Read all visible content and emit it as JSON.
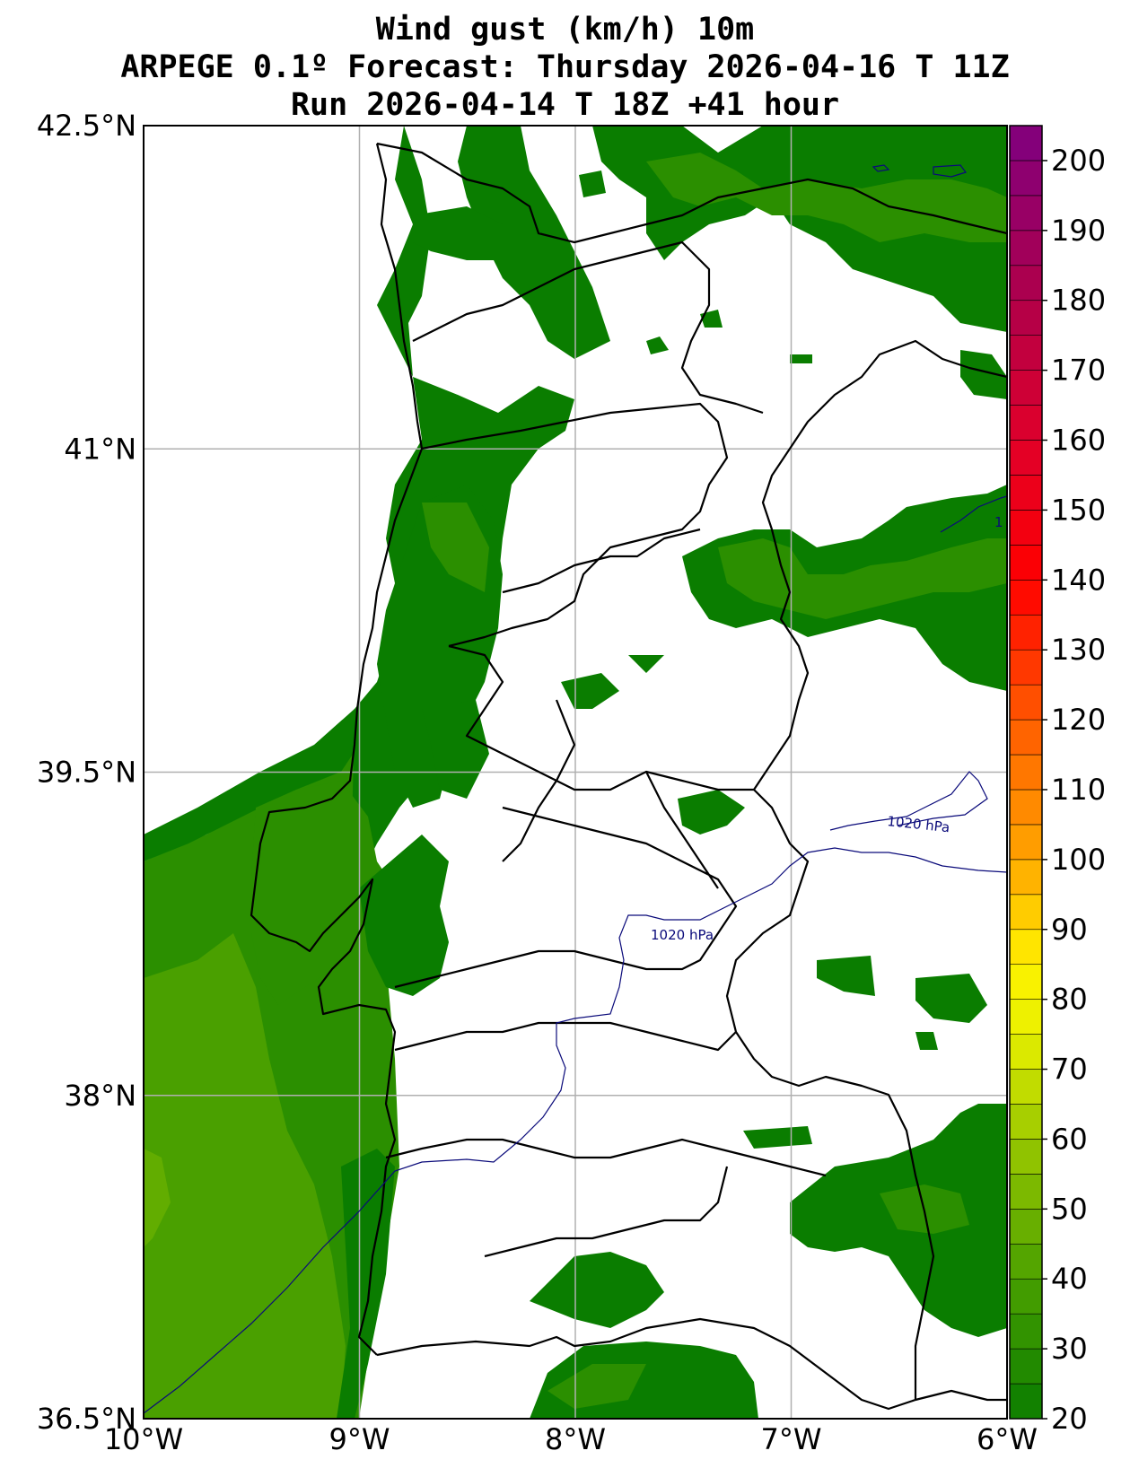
{
  "title": {
    "line1": "Wind gust (km/h) 10m",
    "line2": "ARPEGE 0.1º Forecast: Thursday 2026-04-16 T 11Z",
    "line3": "Run 2026-04-14 T 18Z +41 hour"
  },
  "map": {
    "lon_range": [
      -10,
      -6
    ],
    "lat_range": [
      36.5,
      42.5
    ],
    "lon_ticks": [
      {
        "value": -10,
        "label": "10°W"
      },
      {
        "value": -9,
        "label": "9°W"
      },
      {
        "value": -8,
        "label": "8°W"
      },
      {
        "value": -7,
        "label": "7°W"
      },
      {
        "value": -6,
        "label": "6°W"
      }
    ],
    "lat_ticks": [
      {
        "value": 42.5,
        "label": "42.5°N"
      },
      {
        "value": 41,
        "label": "41°N"
      },
      {
        "value": 39.5,
        "label": "39.5°N"
      },
      {
        "value": 38,
        "label": "38°N"
      },
      {
        "value": 36.5,
        "label": "36.5°N"
      }
    ],
    "grid": true,
    "isobar_labels": [
      "1020 hPa",
      "1020 hPa",
      "1"
    ],
    "colors": {
      "green_dark": "#0a7d00",
      "green_mid": "#2b8f00",
      "green_light": "#4aa000",
      "green_lighter": "#62ad00",
      "isobar": "#0a0a7a",
      "border": "#000000"
    }
  },
  "colorbar": {
    "min": 20,
    "max": 205,
    "step": 5,
    "labels": [
      "200",
      "190",
      "180",
      "170",
      "160",
      "150",
      "140",
      "130",
      "120",
      "110",
      "100",
      "90",
      "80",
      "70",
      "60",
      "50",
      "40",
      "30",
      "20"
    ],
    "label_values": [
      200,
      190,
      180,
      170,
      160,
      150,
      140,
      130,
      120,
      110,
      100,
      90,
      80,
      70,
      60,
      50,
      40,
      30,
      20
    ],
    "stops": [
      {
        "value": 20,
        "color": "#0a7d00"
      },
      {
        "value": 40,
        "color": "#4aa000"
      },
      {
        "value": 60,
        "color": "#9ac800"
      },
      {
        "value": 75,
        "color": "#e8f000"
      },
      {
        "value": 85,
        "color": "#fff200"
      },
      {
        "value": 100,
        "color": "#ffa600"
      },
      {
        "value": 120,
        "color": "#ff5a00"
      },
      {
        "value": 140,
        "color": "#ff0000"
      },
      {
        "value": 160,
        "color": "#e0002a"
      },
      {
        "value": 180,
        "color": "#b0004a"
      },
      {
        "value": 205,
        "color": "#7f007f"
      }
    ]
  }
}
